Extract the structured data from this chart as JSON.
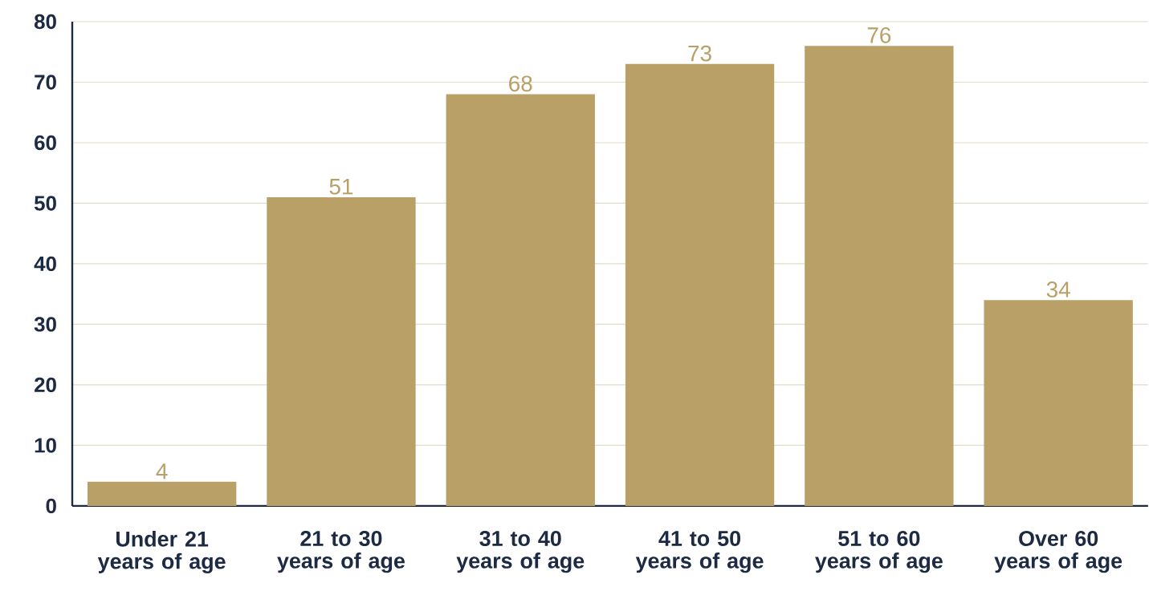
{
  "chart_data": {
    "type": "bar",
    "categories": [
      "Under 21 years of age",
      "21 to 30 years of age",
      "31 to 40 years of age",
      "41 to 50 years of age",
      "51 to 60 years of age",
      "Over 60 years of age"
    ],
    "values": [
      4,
      51,
      68,
      73,
      76,
      34
    ],
    "color": "#b8a067",
    "ylim": [
      0,
      80
    ],
    "yticks": [
      0,
      10,
      20,
      30,
      40,
      50,
      60,
      70,
      80
    ],
    "grid": "y",
    "data_labels": true
  }
}
